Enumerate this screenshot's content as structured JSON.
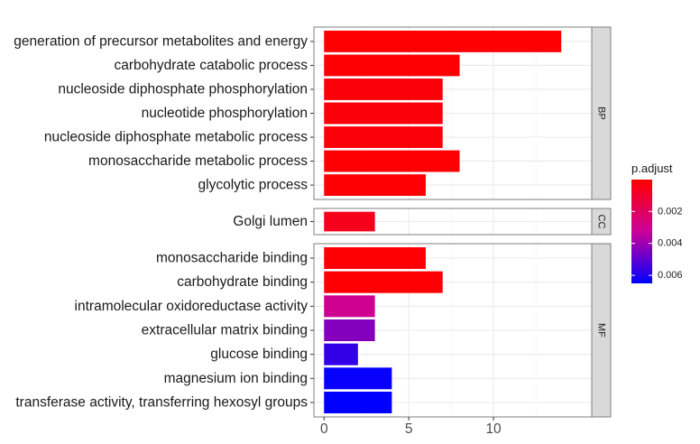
{
  "chart_data": {
    "type": "bar",
    "orientation": "horizontal",
    "x_ticks": [
      0,
      5,
      10
    ],
    "xlim": [
      -0.6,
      15.8
    ],
    "grid": true,
    "color_variable": "p.adjust",
    "facets": [
      {
        "name": "BP",
        "categories": [
          "generation of precursor metabolites and energy",
          "carbohydrate catabolic process",
          "nucleoside diphosphate phosphorylation",
          "nucleotide phosphorylation",
          "nucleoside diphosphate metabolic process",
          "monosaccharide metabolic process",
          "glycolytic process"
        ],
        "values": [
          14,
          8,
          7,
          7,
          7,
          8,
          6
        ],
        "p_adjust": [
          1e-05,
          0.0001,
          0.0002,
          0.0002,
          0.0002,
          0.0001,
          0.0001
        ]
      },
      {
        "name": "CC",
        "categories": [
          "Golgi lumen"
        ],
        "values": [
          3
        ],
        "p_adjust": [
          0.0006
        ]
      },
      {
        "name": "MF",
        "categories": [
          "monosaccharide binding",
          "carbohydrate binding",
          "intramolecular oxidoreductase activity",
          "extracellular matrix binding",
          "glucose binding",
          "magnesium ion binding",
          "transferase activity, transferring hexosyl groups"
        ],
        "values": [
          6,
          7,
          3,
          3,
          2,
          4,
          4
        ],
        "p_adjust": [
          0.0001,
          0.0001,
          0.0031,
          0.0044,
          0.0057,
          0.0064,
          0.0065
        ]
      }
    ],
    "legend": {
      "title": "p.adjust",
      "ticks": [
        {
          "value": 0.002,
          "label": "0.002"
        },
        {
          "value": 0.004,
          "label": "0.004"
        },
        {
          "value": 0.006,
          "label": "0.006"
        }
      ],
      "min": 1e-05,
      "max": 0.0065,
      "color_low": "#FF0000",
      "color_high": "#0000FF",
      "placement": "right"
    },
    "colors": {
      "panel_border": "#7f7f7f",
      "strip_fill": "#d9d9d9",
      "grid": "#ebebeb"
    }
  }
}
